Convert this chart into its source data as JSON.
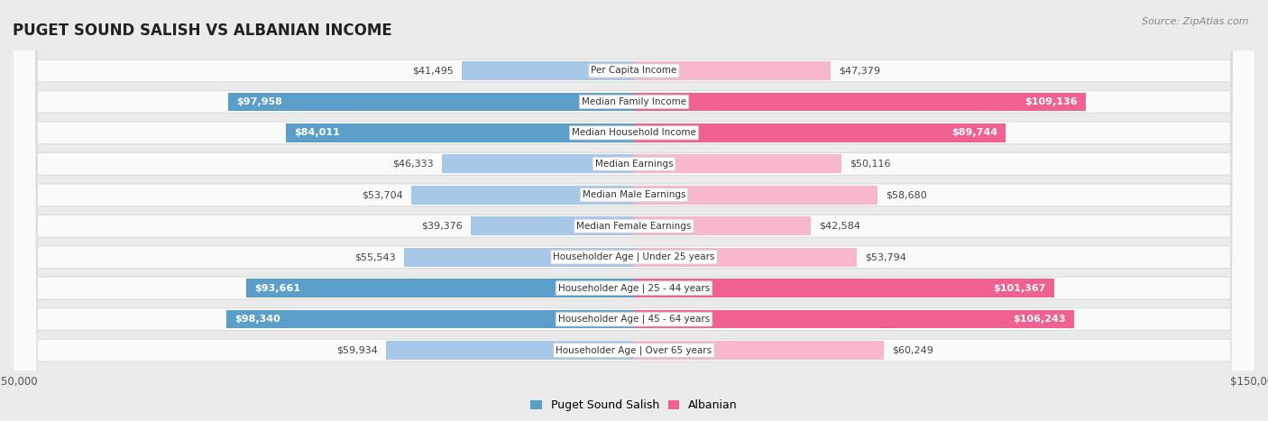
{
  "title": "PUGET SOUND SALISH VS ALBANIAN INCOME",
  "source": "Source: ZipAtlas.com",
  "categories": [
    "Per Capita Income",
    "Median Family Income",
    "Median Household Income",
    "Median Earnings",
    "Median Male Earnings",
    "Median Female Earnings",
    "Householder Age | Under 25 years",
    "Householder Age | 25 - 44 years",
    "Householder Age | 45 - 64 years",
    "Householder Age | Over 65 years"
  ],
  "salish_values": [
    41495,
    97958,
    84011,
    46333,
    53704,
    39376,
    55543,
    93661,
    98340,
    59934
  ],
  "albanian_values": [
    47379,
    109136,
    89744,
    50116,
    58680,
    42584,
    53794,
    101367,
    106243,
    60249
  ],
  "salish_light_color": "#A8C8E8",
  "salish_dark_color": "#5B9EC9",
  "albanian_light_color": "#F8B8CC",
  "albanian_dark_color": "#F06090",
  "salish_threshold": 70000,
  "albanian_threshold": 70000,
  "max_value": 150000,
  "bg_color": "#EBEBEB",
  "row_bg": "#FAFAFA",
  "row_border": "#DDDDDD",
  "title_fontsize": 12,
  "bar_label_fontsize": 8,
  "cat_label_fontsize": 7.5,
  "axis_label_fontsize": 8.5
}
